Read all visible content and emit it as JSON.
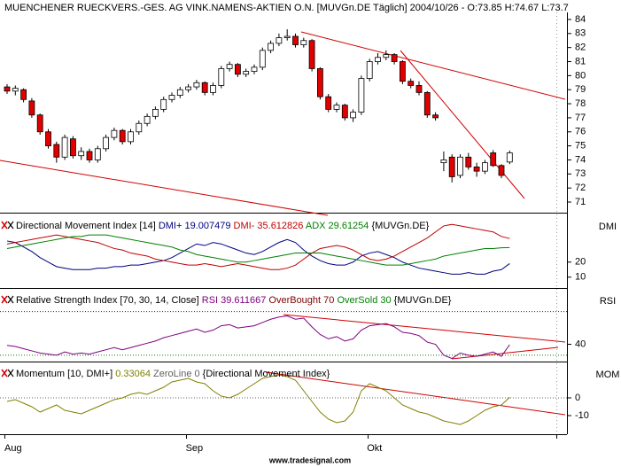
{
  "chart_data": [
    {
      "type": "candlestick",
      "title": "MUENCHENER RUECKVERS.-GES. AG VINK.NAMENS-AKTIEN O.N. [MUVGn.DE  Täglich] 2004/10/26 - O:73.85 H:74.67 L:73.7",
      "categories": [
        "Aug",
        null,
        null,
        null,
        null,
        null,
        null,
        null,
        null,
        null,
        null,
        null,
        null,
        null,
        null,
        null,
        null,
        null,
        null,
        null,
        null,
        null,
        "Sep",
        null,
        null,
        null,
        null,
        null,
        null,
        null,
        null,
        null,
        null,
        null,
        null,
        null,
        null,
        null,
        null,
        null,
        null,
        null,
        null,
        null,
        "Okt",
        null,
        null,
        null,
        null,
        null,
        null,
        null,
        null,
        null,
        null,
        null,
        null,
        null,
        null,
        null,
        null,
        null
      ],
      "open": [
        79.2,
        78.9,
        79.0,
        78.2,
        77.2,
        76.0,
        75.1,
        74.2,
        75.5,
        74.3,
        74.6,
        74.0,
        74.8,
        75.6,
        76.1,
        75.3,
        76.0,
        76.6,
        77.1,
        77.6,
        78.3,
        78.6,
        79.0,
        79.2,
        79.5,
        78.8,
        79.3,
        80.5,
        80.8,
        80.1,
        80.3,
        80.6,
        81.8,
        82.3,
        82.7,
        82.8,
        82.2,
        82.5,
        80.5,
        78.5,
        77.6,
        77.9,
        77.0,
        77.4,
        79.8,
        81.0,
        81.3,
        81.5,
        81.0,
        79.6,
        79.3,
        78.8,
        77.2,
        73.8,
        74.2,
        72.9,
        74.2,
        73.5,
        73.2,
        74.5,
        73.6,
        73.85
      ],
      "high": [
        79.4,
        79.3,
        79.1,
        78.4,
        77.3,
        76.2,
        75.3,
        75.8,
        75.7,
        74.9,
        74.8,
        75.0,
        75.8,
        76.3,
        76.2,
        76.2,
        76.8,
        77.3,
        77.8,
        78.5,
        78.8,
        79.2,
        79.4,
        79.7,
        79.6,
        79.5,
        80.7,
        81.0,
        80.9,
        80.5,
        80.8,
        82.0,
        82.5,
        83.0,
        83.3,
        83.0,
        82.7,
        82.6,
        80.6,
        78.7,
        78.1,
        78.0,
        77.6,
        80.0,
        81.2,
        81.6,
        81.8,
        81.6,
        81.1,
        79.8,
        79.6,
        78.9,
        77.4,
        74.6,
        74.4,
        74.4,
        74.5,
        73.8,
        74.0,
        74.7,
        73.7,
        74.67
      ],
      "low": [
        78.7,
        78.6,
        78.1,
        77.0,
        75.8,
        74.8,
        73.8,
        74.0,
        74.1,
        74.0,
        73.8,
        73.8,
        74.6,
        75.4,
        75.1,
        75.1,
        75.8,
        76.4,
        76.9,
        77.4,
        78.1,
        78.4,
        78.8,
        79.0,
        78.6,
        78.6,
        79.1,
        80.3,
        79.9,
        79.9,
        80.1,
        80.4,
        81.6,
        82.1,
        82.5,
        82.0,
        82.0,
        80.3,
        78.3,
        77.4,
        77.4,
        76.8,
        76.7,
        77.2,
        79.6,
        80.8,
        81.1,
        80.8,
        79.4,
        79.1,
        78.6,
        77.0,
        76.8,
        73.2,
        72.4,
        72.7,
        73.3,
        72.8,
        73.0,
        73.5,
        72.7,
        73.7
      ],
      "close": [
        78.9,
        79.1,
        78.3,
        77.2,
        76.0,
        75.0,
        74.2,
        75.6,
        74.3,
        74.6,
        74.0,
        74.8,
        75.6,
        76.1,
        75.3,
        76.0,
        76.6,
        77.1,
        77.6,
        78.3,
        78.6,
        79.0,
        79.2,
        79.5,
        78.8,
        79.3,
        80.5,
        80.8,
        80.1,
        80.3,
        80.6,
        81.8,
        82.3,
        82.7,
        82.8,
        82.2,
        82.5,
        80.5,
        78.5,
        77.6,
        77.9,
        77.0,
        77.4,
        79.8,
        81.0,
        81.3,
        81.5,
        81.0,
        79.6,
        79.3,
        78.8,
        77.2,
        77.0,
        74.0,
        72.8,
        74.2,
        73.5,
        73.2,
        73.8,
        73.6,
        72.9,
        74.5
      ],
      "up_color": "#ffffff",
      "down_color": "#e00000",
      "ylim": [
        70.37,
        84.44
      ],
      "yticks": [
        71,
        72,
        73,
        74,
        75,
        76,
        77,
        78,
        79,
        80,
        81,
        82,
        83,
        84
      ]
    },
    {
      "type": "line",
      "title": "Directional Movement Index [14]",
      "label": "DMI",
      "suffix": "{MUVGn.DE}",
      "series": [
        {
          "name": "DMI+ 19.007479",
          "color": "#000080",
          "values": [
            34,
            33,
            30,
            27,
            23,
            20,
            17,
            16,
            15,
            15,
            15,
            16,
            16,
            17,
            17,
            18,
            18,
            19,
            20,
            21,
            23,
            26,
            29,
            32,
            31,
            33,
            32,
            30,
            28,
            26,
            25,
            27,
            30,
            33,
            35,
            33,
            28,
            24,
            21,
            19,
            18,
            18,
            20,
            24,
            26,
            27,
            25,
            23,
            20,
            18,
            16,
            15,
            14,
            13,
            12,
            12,
            13,
            12,
            12,
            14,
            15,
            19.007479
          ]
        },
        {
          "name": "DMI- 35.612826",
          "color": "#c00000",
          "values": [
            32,
            33,
            34,
            35,
            36,
            37,
            38,
            37,
            36,
            35,
            34,
            33,
            31,
            29,
            28,
            26,
            25,
            24,
            22,
            21,
            20,
            19,
            18,
            18,
            19,
            18,
            17,
            18,
            19,
            18,
            17,
            16,
            15,
            15,
            16,
            18,
            22,
            26,
            29,
            30,
            31,
            30,
            28,
            25,
            22,
            21,
            22,
            24,
            27,
            30,
            33,
            36,
            40,
            44,
            45,
            44,
            43,
            42,
            41,
            40,
            37,
            35.612826
          ]
        },
        {
          "name": "ADX 29.61254",
          "color": "#008000",
          "values": [
            29,
            30,
            31,
            32,
            33,
            34,
            35,
            36,
            37,
            37,
            38,
            38,
            38,
            37,
            36,
            35,
            34,
            33,
            32,
            31,
            30,
            28,
            27,
            25,
            24,
            23,
            22,
            21,
            20,
            20,
            21,
            22,
            23,
            24,
            25,
            26,
            26,
            26,
            26,
            25,
            24,
            23,
            22,
            21,
            20,
            19,
            18,
            18,
            18,
            19,
            20,
            21,
            22,
            24,
            25,
            26,
            27,
            28,
            29,
            29,
            29.5,
            29.61254
          ]
        }
      ],
      "ylim": [
        4,
        51
      ],
      "yticks": [
        10,
        20
      ]
    },
    {
      "type": "line",
      "title": "Relative Strength Index [70, 30, 14, Close]",
      "label": "RSI",
      "suffix": "{MUVGn.DE}",
      "series": [
        {
          "name": "RSI 39.611667",
          "color": "#800080",
          "values": [
            39,
            38,
            36,
            34,
            32,
            31,
            30,
            33,
            31,
            32,
            31,
            33,
            35,
            37,
            35,
            37,
            39,
            41,
            43,
            46,
            48,
            50,
            52,
            54,
            51,
            53,
            57,
            58,
            55,
            56,
            57,
            60,
            63,
            65,
            66,
            63,
            64,
            56,
            49,
            45,
            47,
            43,
            45,
            53,
            57,
            58,
            59,
            56,
            51,
            50,
            48,
            42,
            40,
            30,
            27,
            32,
            30,
            29,
            31,
            33,
            29,
            39.611667
          ]
        }
      ],
      "levels": [
        {
          "name": "OverBought 70",
          "value": 70,
          "color": "#800000"
        },
        {
          "name": "OverSold 30",
          "value": 30,
          "color": "#008000"
        }
      ],
      "ylim": [
        25,
        90
      ],
      "yticks": [
        40
      ]
    },
    {
      "type": "line",
      "title": "Momentum [10, DMI+]",
      "label": "MOM",
      "suffix": "{Directional Movement Index}",
      "series": [
        {
          "name": "0.33064",
          "color": "#808000",
          "values": [
            -2,
            -1,
            -3,
            -5,
            -8,
            -6,
            -4,
            -7,
            -8,
            -9,
            -7,
            -5,
            -3,
            -1,
            0,
            2,
            3,
            2,
            4,
            6,
            9,
            10,
            11,
            9,
            8,
            4,
            1,
            0,
            2,
            5,
            8,
            11,
            12,
            13,
            12,
            10,
            4,
            -2,
            -8,
            -12,
            -14,
            -13,
            -8,
            4,
            8,
            6,
            4,
            0,
            -4,
            -6,
            -8,
            -9,
            -11,
            -13,
            -14,
            -15,
            -13,
            -10,
            -7,
            -5,
            -4,
            0.33064
          ]
        }
      ],
      "levels": [
        {
          "name": "ZeroLine 0",
          "value": 0,
          "color": "#606060"
        }
      ],
      "ylim": [
        -19.5,
        19.5
      ],
      "yticks": [
        -10,
        0
      ]
    }
  ],
  "footer": "www.tradesignal.com"
}
